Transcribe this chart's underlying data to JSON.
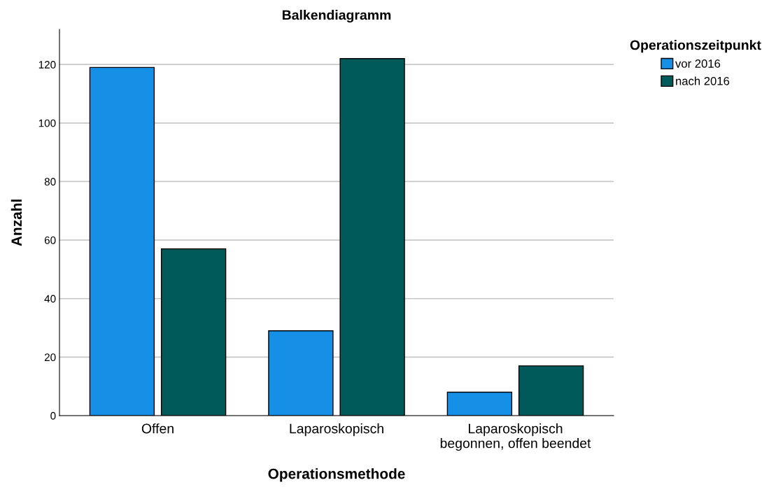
{
  "chart_data": {
    "type": "bar",
    "title": "Balkendiagramm",
    "xlabel": "Operationsmethode",
    "ylabel": "Anzahl",
    "legend_title": "Operationszeitpunkt",
    "categories": [
      "Offen",
      "Laparoskopisch",
      "Laparoskopisch\nbegonnen, offen beendet"
    ],
    "series": [
      {
        "name": "vor 2016",
        "color": "#168fe6",
        "values": [
          119,
          29,
          8
        ]
      },
      {
        "name": "nach 2016",
        "color": "#005a5a",
        "values": [
          57,
          122,
          17
        ]
      }
    ],
    "ylim": [
      0,
      132
    ],
    "yticks": [
      0,
      20,
      40,
      60,
      80,
      100,
      120
    ],
    "grid": "y",
    "legend": "top right"
  }
}
